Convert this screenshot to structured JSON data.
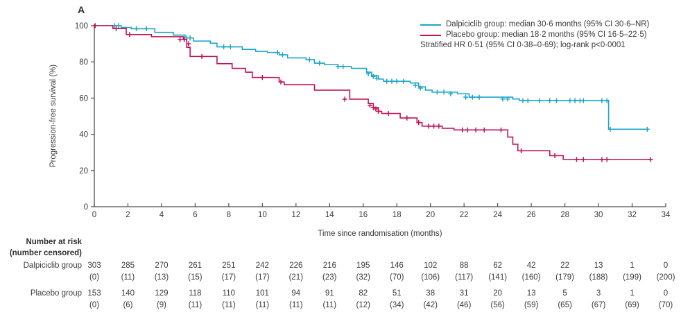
{
  "panel_label": "A",
  "colors": {
    "dalpiciclib": "#1ba6c7",
    "placebo": "#c01257",
    "axis": "#4d4d4d",
    "text": "#3a3a3a"
  },
  "legend": {
    "entries": [
      {
        "label": "Dalpiciclib group: median 30·6 months (95% CI 30·6–NR)",
        "series": "Dalpiciclib group"
      },
      {
        "label": "Placebo group: median 18·2 months (95% CI 16·5–22·5)",
        "series": "Placebo group"
      }
    ],
    "footnote": "Stratified HR 0·51 (95% CI 0·38–0·69); log-rank p<0·0001"
  },
  "chart_data": {
    "type": "line",
    "subtype": "kaplan-meier-step",
    "title": "",
    "xlabel": "Time since randomisation (months)",
    "ylabel": "Progression-free survival (%)",
    "xlim": [
      0,
      34
    ],
    "ylim": [
      0,
      100
    ],
    "xticks": [
      0,
      2,
      4,
      6,
      8,
      10,
      12,
      14,
      16,
      18,
      20,
      22,
      24,
      26,
      28,
      30,
      32,
      34
    ],
    "yticks": [
      0,
      20,
      40,
      60,
      80,
      100
    ],
    "grid": false,
    "legend_position": "top-right",
    "series": [
      {
        "name": "Dalpiciclib group",
        "color": "#1ba6c7",
        "end_month": 33.0,
        "steps": [
          [
            0,
            100
          ],
          [
            1.6,
            99
          ],
          [
            2.2,
            98.3
          ],
          [
            3.6,
            96.3
          ],
          [
            4.7,
            94.8
          ],
          [
            5.4,
            93.2
          ],
          [
            5.9,
            91.5
          ],
          [
            6.9,
            90.3
          ],
          [
            7.3,
            88.3
          ],
          [
            8.8,
            86.9
          ],
          [
            9.6,
            85.8
          ],
          [
            10.3,
            85.2
          ],
          [
            11.0,
            83.9
          ],
          [
            11.5,
            82.2
          ],
          [
            12.6,
            81.2
          ],
          [
            13.1,
            79.3
          ],
          [
            13.7,
            78.5
          ],
          [
            14.5,
            77.4
          ],
          [
            15.3,
            76.4
          ],
          [
            16.2,
            74.3
          ],
          [
            16.5,
            72.4
          ],
          [
            16.9,
            70.5
          ],
          [
            17.2,
            69.3
          ],
          [
            18.8,
            68.3
          ],
          [
            19.3,
            66.2
          ],
          [
            19.7,
            64.4
          ],
          [
            20.1,
            63.3
          ],
          [
            21.6,
            62.4
          ],
          [
            22.3,
            60.5
          ],
          [
            24.9,
            59.5
          ],
          [
            25.3,
            58.6
          ],
          [
            30.6,
            42.8
          ]
        ],
        "censors": [
          [
            1.2,
            100
          ],
          [
            1.45,
            100
          ],
          [
            2.5,
            98.3
          ],
          [
            3.1,
            98.3
          ],
          [
            5.5,
            93.2
          ],
          [
            5.7,
            93.2
          ],
          [
            7.7,
            88.3
          ],
          [
            8.1,
            88.3
          ],
          [
            10.9,
            85.2
          ],
          [
            11.2,
            83.9
          ],
          [
            12.8,
            81.2
          ],
          [
            13.4,
            79.3
          ],
          [
            14.5,
            77.4
          ],
          [
            14.8,
            77.4
          ],
          [
            16.3,
            73.4
          ],
          [
            16.6,
            72
          ],
          [
            16.8,
            71
          ],
          [
            17.4,
            69.3
          ],
          [
            17.7,
            69.3
          ],
          [
            18.0,
            69.3
          ],
          [
            18.4,
            69.3
          ],
          [
            19.1,
            67
          ],
          [
            19.4,
            65.5
          ],
          [
            20.4,
            63.3
          ],
          [
            20.8,
            63.3
          ],
          [
            21.2,
            62.4
          ],
          [
            22.1,
            60.5
          ],
          [
            22.5,
            60.5
          ],
          [
            22.9,
            60.5
          ],
          [
            24.3,
            59.5
          ],
          [
            24.6,
            59.5
          ],
          [
            25.5,
            58.6
          ],
          [
            25.8,
            58.6
          ],
          [
            26.5,
            58.6
          ],
          [
            27.1,
            58.6
          ],
          [
            27.5,
            58.6
          ],
          [
            28.3,
            58.6
          ],
          [
            28.6,
            58.6
          ],
          [
            28.9,
            58.6
          ],
          [
            29.1,
            58.6
          ],
          [
            30.2,
            58.6
          ],
          [
            30.5,
            58.6
          ],
          [
            30.7,
            42.8
          ],
          [
            32.9,
            42.8
          ]
        ]
      },
      {
        "name": "Placebo group",
        "color": "#c01257",
        "end_month": 33.2,
        "steps": [
          [
            0,
            100
          ],
          [
            1.1,
            98.4
          ],
          [
            1.9,
            95.1
          ],
          [
            3.4,
            93.9
          ],
          [
            5.3,
            92.3
          ],
          [
            5.5,
            88
          ],
          [
            5.7,
            83
          ],
          [
            7.3,
            79
          ],
          [
            8.2,
            76.4
          ],
          [
            9.0,
            74.3
          ],
          [
            9.4,
            71.4
          ],
          [
            11.0,
            68.9
          ],
          [
            11.3,
            67.4
          ],
          [
            13.1,
            64.4
          ],
          [
            15.2,
            59.4
          ],
          [
            16.3,
            57
          ],
          [
            16.6,
            54.8
          ],
          [
            16.9,
            52.7
          ],
          [
            17.1,
            51.5
          ],
          [
            18.2,
            49
          ],
          [
            19.2,
            46.5
          ],
          [
            19.5,
            44.5
          ],
          [
            20.7,
            43.3
          ],
          [
            21.4,
            42.4
          ],
          [
            24.6,
            38.5
          ],
          [
            24.9,
            34.5
          ],
          [
            25.2,
            30.9
          ],
          [
            27.1,
            28.2
          ],
          [
            27.9,
            26.1
          ]
        ],
        "censors": [
          [
            0.05,
            100
          ],
          [
            1.3,
            98.4
          ],
          [
            2.1,
            95.1
          ],
          [
            5.1,
            92.3
          ],
          [
            5.35,
            92.3
          ],
          [
            5.6,
            90
          ],
          [
            6.4,
            83
          ],
          [
            10.0,
            71.4
          ],
          [
            11.1,
            68.9
          ],
          [
            14.9,
            59.4
          ],
          [
            16.4,
            56
          ],
          [
            16.6,
            54.8
          ],
          [
            16.75,
            54
          ],
          [
            16.9,
            52.7
          ],
          [
            17.5,
            51.5
          ],
          [
            18.6,
            49
          ],
          [
            19.3,
            46.5
          ],
          [
            19.9,
            44.5
          ],
          [
            20.2,
            44.5
          ],
          [
            20.5,
            44.5
          ],
          [
            21.9,
            42.4
          ],
          [
            22.2,
            42.4
          ],
          [
            22.7,
            42.4
          ],
          [
            23.2,
            42.4
          ],
          [
            24.2,
            42.4
          ],
          [
            25.4,
            30.9
          ],
          [
            27.4,
            28.2
          ],
          [
            28.7,
            26.1
          ],
          [
            29.1,
            26.1
          ],
          [
            30.2,
            26.1
          ],
          [
            30.5,
            26.1
          ],
          [
            33.1,
            26.1
          ]
        ]
      }
    ]
  },
  "risk_table": {
    "header_line1": "Number at risk",
    "header_line2": "(number censored)",
    "months": [
      0,
      2,
      4,
      6,
      8,
      10,
      12,
      14,
      16,
      18,
      20,
      22,
      24,
      26,
      28,
      30,
      32,
      34
    ],
    "rows": [
      {
        "label": "Dalpiciclib group",
        "at_risk": [
          "303",
          "285",
          "270",
          "261",
          "251",
          "242",
          "226",
          "216",
          "195",
          "146",
          "102",
          "88",
          "62",
          "42",
          "22",
          "13",
          "1",
          "0"
        ],
        "censored": [
          "(0)",
          "(11)",
          "(13)",
          "(15)",
          "(17)",
          "(17)",
          "(21)",
          "(23)",
          "(32)",
          "(70)",
          "(106)",
          "(117)",
          "(141)",
          "(160)",
          "(179)",
          "(188)",
          "(199)",
          "(200)"
        ]
      },
      {
        "label": "Placebo group",
        "at_risk": [
          "153",
          "140",
          "129",
          "118",
          "110",
          "101",
          "94",
          "91",
          "82",
          "51",
          "38",
          "31",
          "20",
          "13",
          "5",
          "3",
          "1",
          "0"
        ],
        "censored": [
          "(0)",
          "(6)",
          "(9)",
          "(11)",
          "(11)",
          "(11)",
          "(11)",
          "(11)",
          "(12)",
          "(34)",
          "(42)",
          "(46)",
          "(56)",
          "(59)",
          "(65)",
          "(67)",
          "(69)",
          "(70)"
        ]
      }
    ]
  }
}
